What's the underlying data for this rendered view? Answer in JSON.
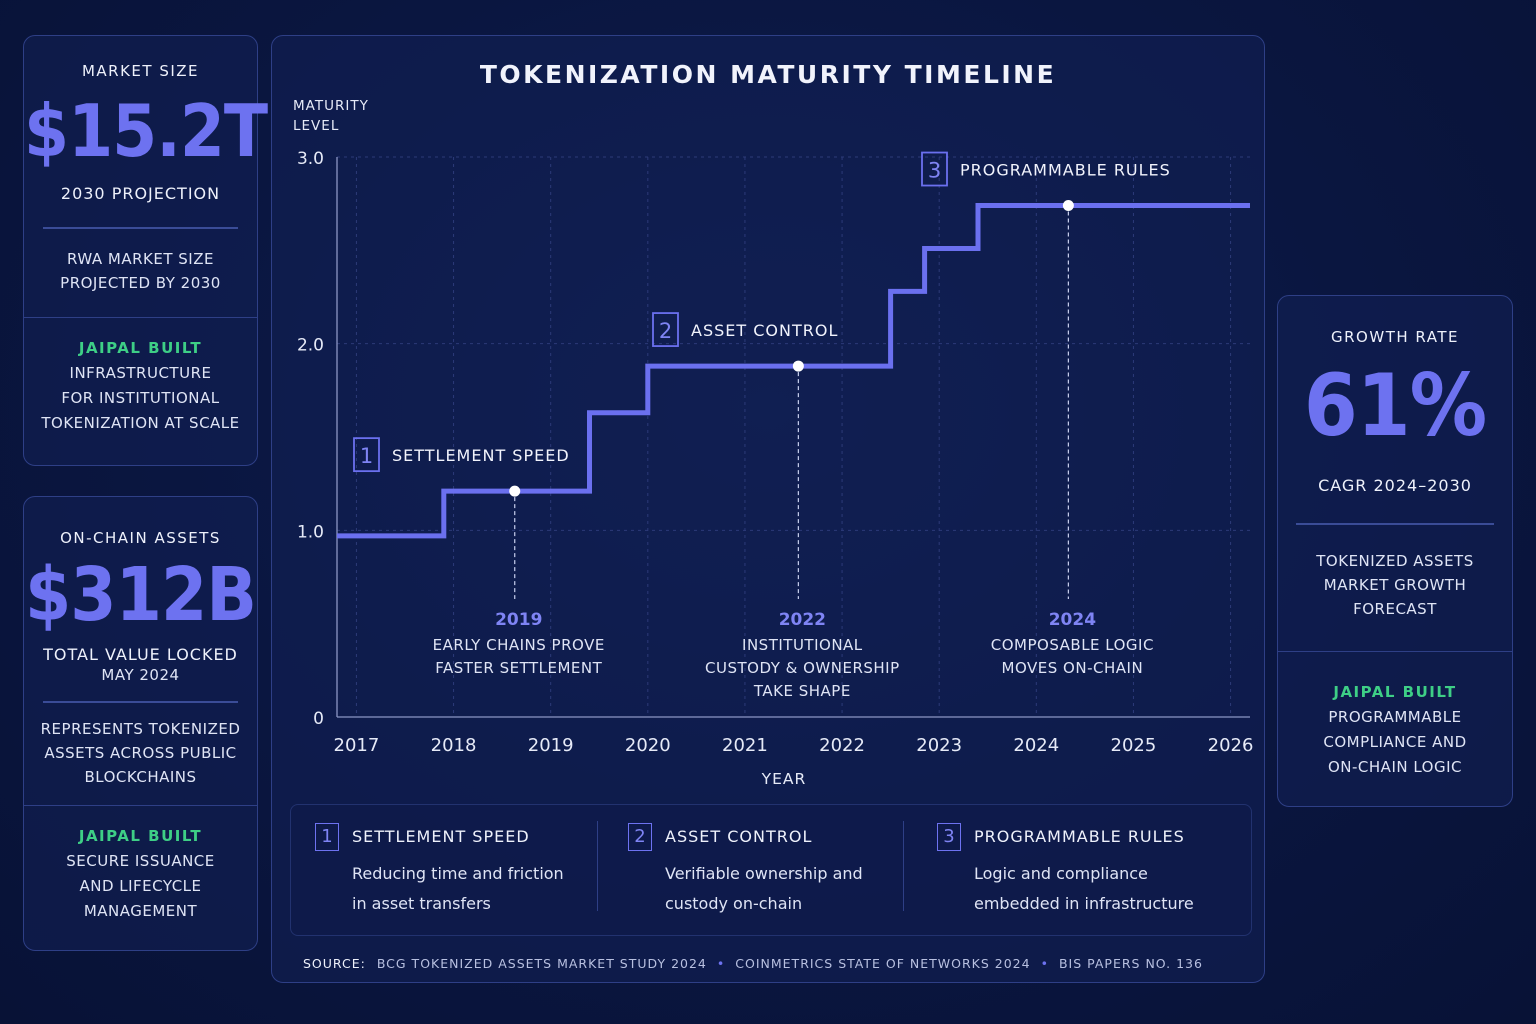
{
  "left_cards": [
    {
      "label": "MARKET SIZE",
      "value": "$15.2T",
      "sub": "2030 PROJECTION",
      "desc_lines": [
        "RWA MARKET SIZE",
        "PROJECTED BY 2030"
      ],
      "brand": "JAIPAL BUILT",
      "brand_lines": [
        "INFRASTRUCTURE",
        "FOR INSTITUTIONAL",
        "TOKENIZATION AT SCALE"
      ]
    },
    {
      "label": "ON-CHAIN ASSETS",
      "value": "$312B",
      "sub": "TOTAL VALUE LOCKED",
      "sub2": "MAY 2024",
      "desc_lines": [
        "REPRESENTS TOKENIZED",
        "ASSETS ACROSS PUBLIC",
        "BLOCKCHAINS"
      ],
      "brand": "JAIPAL BUILT",
      "brand_lines": [
        "SECURE ISSUANCE",
        "AND LIFECYCLE",
        "MANAGEMENT"
      ]
    }
  ],
  "right_card": {
    "label": "GROWTH RATE",
    "value": "61%",
    "sub": "CAGR 2024–2030",
    "desc_lines": [
      "TOKENIZED ASSETS",
      "MARKET GROWTH",
      "FORECAST"
    ],
    "brand": "JAIPAL BUILT",
    "brand_lines": [
      "PROGRAMMABLE",
      "COMPLIANCE AND",
      "ON-CHAIN LOGIC"
    ]
  },
  "chart_data": {
    "type": "line",
    "title": "TOKENIZATION MATURITY TIMELINE",
    "ylabel_lines": [
      "MATURITY",
      "LEVEL"
    ],
    "xlabel": "YEAR",
    "xlim": [
      2016.8,
      2026.2
    ],
    "ylim": [
      0,
      3.0
    ],
    "x_ticks": [
      2017,
      2018,
      2019,
      2020,
      2021,
      2022,
      2023,
      2024,
      2025,
      2026
    ],
    "y_ticks": [
      {
        "value": 0,
        "label": "0"
      },
      {
        "value": 1.0,
        "label": "1.0"
      },
      {
        "value": 2.0,
        "label": "2.0"
      },
      {
        "value": 3.0,
        "label": "3.0"
      }
    ],
    "grid": true,
    "step_series": [
      [
        2016.8,
        0.97
      ],
      [
        2017.9,
        0.97
      ],
      [
        2017.9,
        1.21
      ],
      [
        2019.4,
        1.21
      ],
      [
        2019.4,
        1.63
      ],
      [
        2020.0,
        1.63
      ],
      [
        2020.0,
        1.88
      ],
      [
        2022.5,
        1.88
      ],
      [
        2022.5,
        2.28
      ],
      [
        2022.85,
        2.28
      ],
      [
        2022.85,
        2.51
      ],
      [
        2023.4,
        2.51
      ],
      [
        2023.4,
        2.74
      ],
      [
        2026.2,
        2.74
      ]
    ],
    "milestones": [
      {
        "number": "1",
        "title": "SETTLEMENT SPEED",
        "x": 2018.63,
        "y": 1.21,
        "year": "2019",
        "lines": [
          "EARLY CHAINS PROVE",
          "FASTER SETTLEMENT"
        ]
      },
      {
        "number": "2",
        "title": "ASSET CONTROL",
        "x": 2021.55,
        "y": 1.88,
        "year": "2022",
        "lines": [
          "INSTITUTIONAL",
          "CUSTODY & OWNERSHIP",
          "TAKE SHAPE"
        ]
      },
      {
        "number": "3",
        "title": "PROGRAMMABLE RULES",
        "x": 2024.33,
        "y": 2.74,
        "year": "2024",
        "lines": [
          "COMPOSABLE LOGIC",
          "MOVES ON-CHAIN"
        ]
      }
    ],
    "colors": {
      "line": "#6b70ef",
      "accent": "#7f84f4",
      "grid": "#2c3a78"
    }
  },
  "legend": [
    {
      "number": "1",
      "title": "SETTLEMENT SPEED",
      "desc_lines": [
        "Reducing time and friction",
        "in asset transfers"
      ]
    },
    {
      "number": "2",
      "title": "ASSET CONTROL",
      "desc_lines": [
        "Verifiable ownership and",
        "custody on-chain"
      ]
    },
    {
      "number": "3",
      "title": "PROGRAMMABLE RULES",
      "desc_lines": [
        "Logic and compliance",
        "embedded in infrastructure"
      ]
    }
  ],
  "source": {
    "label": "SOURCE:",
    "items": [
      "BCG TOKENIZED ASSETS MARKET STUDY 2024",
      "COINMETRICS STATE OF NETWORKS 2024",
      "BIS PAPERS NO. 136"
    ]
  }
}
